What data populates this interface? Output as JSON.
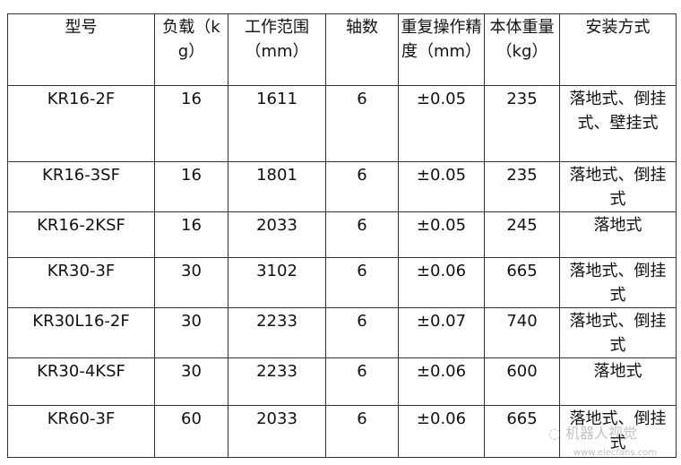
{
  "headers": [
    "型号",
    "负载（kg）",
    "工作范围（mm）",
    "轴数",
    "重复操作精度（mm）",
    "本体重量（kg）",
    "安装方式"
  ],
  "rows": [
    [
      "KR16-2F",
      "16",
      "1611",
      "6",
      "±0.05",
      "235",
      "落地式、倒挂式、壁挂式"
    ],
    [
      "KR16-3SF",
      "16",
      "1801",
      "6",
      "±0.05",
      "235",
      "落地式、倒挂式"
    ],
    [
      "KR16-2KSF",
      "16",
      "2033",
      "6",
      "±0.05",
      "245",
      "落地式"
    ],
    [
      "KR30-3F",
      "30",
      "3102",
      "6",
      "±0.06",
      "665",
      "落地式、倒挂式"
    ],
    [
      "KR30L16-2F",
      "30",
      "2233",
      "6",
      "±0.07",
      "740",
      "落地式、倒挂式"
    ],
    [
      "KR30-4KSF",
      "30",
      "2233",
      "6",
      "±0.06",
      "600",
      "落地式"
    ],
    [
      "KR60-3F",
      "60",
      "2033",
      "6",
      "±0.06",
      "665",
      "落地式、倒挂式"
    ]
  ],
  "watermark": {
    "text": "机器人视觉",
    "site": "www.elecfans.com"
  }
}
